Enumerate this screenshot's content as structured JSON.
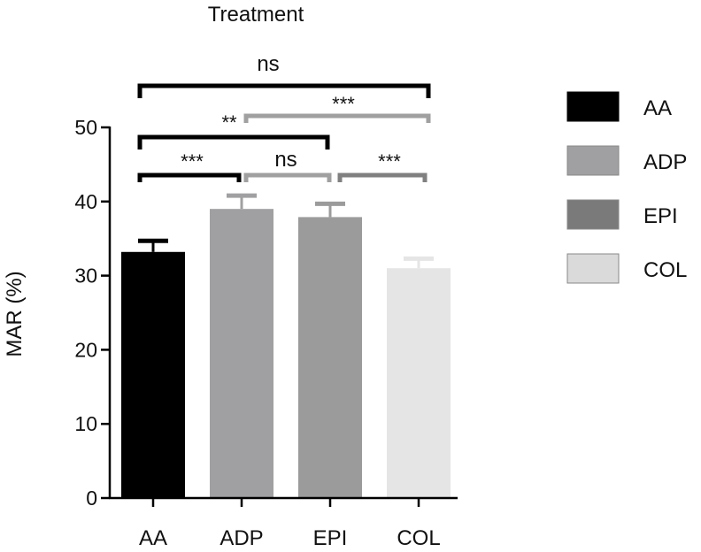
{
  "chart_data": {
    "type": "bar",
    "title": "Treatment",
    "ylabel": "MAR (%)",
    "xlabel": "",
    "ylim": [
      0,
      50
    ],
    "yticks": [
      0,
      10,
      20,
      30,
      40,
      50
    ],
    "categories": [
      "AA",
      "ADP",
      "EPI",
      "COL"
    ],
    "values": [
      33.2,
      39.0,
      37.9,
      31.0
    ],
    "errors": [
      1.5,
      1.8,
      1.8,
      1.3
    ],
    "colors": [
      "#000000",
      "#a0a0a2",
      "#9b9b9b",
      "#e5e5e5"
    ],
    "legend": {
      "position": "right",
      "entries": [
        {
          "label": "AA",
          "color": "#000000"
        },
        {
          "label": "ADP",
          "color": "#a0a0a2"
        },
        {
          "label": "EPI",
          "color": "#7a7a7a"
        },
        {
          "label": "COL",
          "color": "#dadada"
        }
      ]
    },
    "comparisons": [
      {
        "from": "AA",
        "to": "COL",
        "label": "ns",
        "color": "#000000"
      },
      {
        "from": "ADP",
        "to": "COL",
        "label": "***",
        "color": "#a0a0a0"
      },
      {
        "from": "AA",
        "to": "EPI",
        "label": "**",
        "color": "#000000"
      },
      {
        "from": "AA",
        "to": "ADP",
        "label": "***",
        "color": "#000000"
      },
      {
        "from": "ADP",
        "to": "EPI",
        "label": "ns",
        "color": "#a0a0a0"
      },
      {
        "from": "EPI",
        "to": "COL",
        "label": "***",
        "color": "#808080"
      }
    ]
  }
}
